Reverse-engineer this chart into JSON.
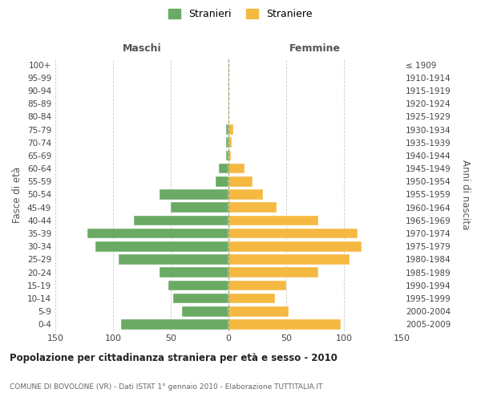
{
  "age_groups": [
    "0-4",
    "5-9",
    "10-14",
    "15-19",
    "20-24",
    "25-29",
    "30-34",
    "35-39",
    "40-44",
    "45-49",
    "50-54",
    "55-59",
    "60-64",
    "65-69",
    "70-74",
    "75-79",
    "80-84",
    "85-89",
    "90-94",
    "95-99",
    "100+"
  ],
  "birth_years": [
    "2005-2009",
    "2000-2004",
    "1995-1999",
    "1990-1994",
    "1985-1989",
    "1980-1984",
    "1975-1979",
    "1970-1974",
    "1965-1969",
    "1960-1964",
    "1955-1959",
    "1950-1954",
    "1945-1949",
    "1940-1944",
    "1935-1939",
    "1930-1934",
    "1925-1929",
    "1920-1924",
    "1915-1919",
    "1910-1914",
    "≤ 1909"
  ],
  "maschi": [
    93,
    40,
    48,
    52,
    60,
    95,
    115,
    122,
    82,
    50,
    60,
    11,
    8,
    2,
    2,
    2,
    0,
    0,
    0,
    0,
    0
  ],
  "femmine": [
    97,
    52,
    40,
    50,
    78,
    105,
    115,
    112,
    78,
    42,
    30,
    21,
    14,
    2,
    3,
    4,
    0,
    0,
    0,
    0,
    0
  ],
  "male_color": "#6aaa64",
  "female_color": "#f5b942",
  "title": "Popolazione per cittadinanza straniera per età e sesso - 2010",
  "subtitle": "COMUNE DI BOVOLONE (VR) - Dati ISTAT 1° gennaio 2010 - Elaborazione TUTTITALIA.IT",
  "label_maschi": "Maschi",
  "label_femmine": "Femmine",
  "ylabel_left": "Fasce di età",
  "ylabel_right": "Anni di nascita",
  "legend_male": "Stranieri",
  "legend_female": "Straniere",
  "xlim": 150,
  "bg_color": "#ffffff",
  "grid_color": "#cccccc"
}
